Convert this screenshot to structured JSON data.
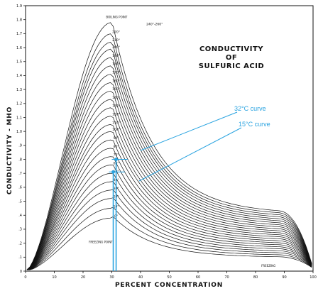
{
  "chart_data": {
    "type": "line",
    "title_lines": [
      "CONDUCTIVITY",
      "OF",
      "SULFURIC ACID"
    ],
    "xlabel": "PERCENT CONCENTRATION",
    "ylabel": "CONDUCTIVITY - MHO",
    "xlim": [
      0,
      100
    ],
    "ylim": [
      0,
      1.9
    ],
    "x_ticks": [
      "0",
      "10",
      "20",
      "30",
      "40",
      "50",
      "60",
      "70",
      "80",
      "90",
      "100"
    ],
    "y_ticks": [
      "0",
      ".1",
      ".2",
      ".3",
      ".4",
      ".5",
      ".6",
      ".7",
      ".8",
      ".9",
      "1.0",
      "1.1",
      "1.2",
      "1.3",
      "1.4",
      "1.5",
      "1.6",
      "1.7",
      "1.8",
      "1.9"
    ],
    "grid": false,
    "curve_labels": [
      "0°",
      "10°",
      "20°",
      "30°",
      "40°",
      "50°",
      "60°",
      "70°",
      "80°",
      "90°",
      "100°",
      "110°",
      "120°",
      "130°",
      "140°",
      "150°",
      "160°",
      "170°",
      "180°",
      "190°",
      "200°",
      "210°",
      "220°"
    ],
    "curve_label_top": "240°-260°",
    "boiling_point_label": "BOILING POINT",
    "freezing_point_label_left": "FREEZING POINT",
    "freezing_point_label_right": "FREEZING",
    "peak_conductivity": {
      "temperatures_c": [
        0,
        10,
        20,
        30,
        40,
        50,
        60,
        70,
        80,
        90,
        100,
        110,
        120,
        130,
        140,
        150,
        160,
        170,
        180,
        190,
        200,
        210,
        220,
        250
      ],
      "peak_values_mho": [
        0.38,
        0.45,
        0.52,
        0.58,
        0.64,
        0.7,
        0.76,
        0.82,
        0.88,
        0.94,
        1.0,
        1.05,
        1.11,
        1.17,
        1.23,
        1.29,
        1.35,
        1.41,
        1.47,
        1.53,
        1.59,
        1.64,
        1.7,
        1.78
      ],
      "peak_concentration_percent": 30
    },
    "annotations": [
      {
        "text": "32°C curve",
        "color": "#29a3e0",
        "marker": {
          "x": 31.5,
          "y": 0.8
        }
      },
      {
        "text": "15°C curve",
        "color": "#29a3e0",
        "marker": {
          "x": 30.5,
          "y": 0.71
        }
      }
    ]
  }
}
